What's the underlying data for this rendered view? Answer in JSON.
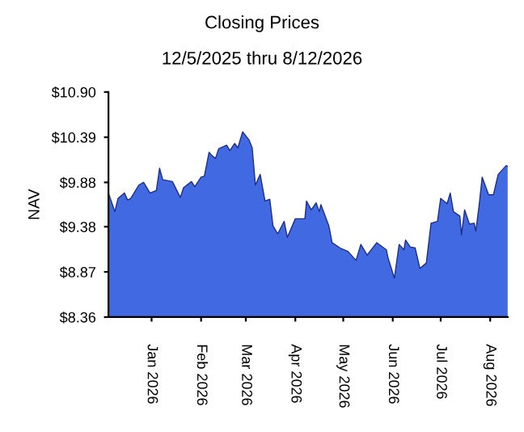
{
  "chart_data": {
    "type": "area",
    "title": "Closing Prices",
    "subtitle": "12/5/2025 thru 8/12/2026",
    "ylabel": "NAV",
    "x": [
      "2025-12-05",
      "2025-12-09",
      "2025-12-11",
      "2025-12-15",
      "2025-12-17",
      "2025-12-19",
      "2025-12-24",
      "2025-12-27",
      "2025-12-31",
      "2026-01-04",
      "2026-01-06",
      "2026-01-08",
      "2026-01-14",
      "2026-01-19",
      "2026-01-21",
      "2026-01-26",
      "2026-01-28",
      "2026-02-01",
      "2026-02-03",
      "2026-02-06",
      "2026-02-08",
      "2026-02-10",
      "2026-02-12",
      "2026-02-17",
      "2026-02-19",
      "2026-02-22",
      "2026-02-24",
      "2026-02-27",
      "2026-03-03",
      "2026-03-05",
      "2026-03-07",
      "2026-03-10",
      "2026-03-13",
      "2026-03-16",
      "2026-03-18",
      "2026-03-21",
      "2026-03-25",
      "2026-03-27",
      "2026-04-01",
      "2026-04-07",
      "2026-04-08",
      "2026-04-11",
      "2026-04-14",
      "2026-04-16",
      "2026-04-17",
      "2026-04-22",
      "2026-04-24",
      "2026-04-29",
      "2026-05-04",
      "2026-05-09",
      "2026-05-12",
      "2026-05-16",
      "2026-05-22",
      "2026-05-28",
      "2026-05-29",
      "2026-06-02",
      "2026-06-05",
      "2026-06-08",
      "2026-06-09",
      "2026-06-12",
      "2026-06-15",
      "2026-06-18",
      "2026-06-22",
      "2026-06-25",
      "2026-06-29",
      "2026-07-01",
      "2026-07-05",
      "2026-07-07",
      "2026-07-09",
      "2026-07-13",
      "2026-07-14",
      "2026-07-16",
      "2026-07-19",
      "2026-07-22",
      "2026-07-23",
      "2026-07-25",
      "2026-07-27",
      "2026-07-31",
      "2026-08-03",
      "2026-08-06",
      "2026-08-11",
      "2026-08-12"
    ],
    "series": [
      {
        "color": "#4169e1",
        "values": [
          9.76,
          9.55,
          9.7,
          9.76,
          9.68,
          9.7,
          9.85,
          9.88,
          9.76,
          9.79,
          10.04,
          9.91,
          9.89,
          9.71,
          9.82,
          9.89,
          9.83,
          9.94,
          9.95,
          10.22,
          10.18,
          10.15,
          10.26,
          10.3,
          10.24,
          10.32,
          10.27,
          10.45,
          10.36,
          10.27,
          9.85,
          9.97,
          9.67,
          9.69,
          9.39,
          9.3,
          9.44,
          9.26,
          9.47,
          9.47,
          9.67,
          9.57,
          9.65,
          9.55,
          9.63,
          9.39,
          9.2,
          9.14,
          9.1,
          9.0,
          9.18,
          9.06,
          9.2,
          9.12,
          9.03,
          8.8,
          9.18,
          9.12,
          9.23,
          9.15,
          9.14,
          8.91,
          8.97,
          9.42,
          9.44,
          9.7,
          9.64,
          9.76,
          9.55,
          9.5,
          9.29,
          9.57,
          9.41,
          9.42,
          9.33,
          9.61,
          9.94,
          9.74,
          9.74,
          9.97,
          10.07,
          10.06
        ]
      }
    ],
    "xlim": [
      "2025-12-05",
      "2026-08-12"
    ],
    "xticks": [
      {
        "value": "2026-01-01",
        "label": "Jan 2026"
      },
      {
        "value": "2026-02-01",
        "label": "Feb 2026"
      },
      {
        "value": "2026-03-01",
        "label": "Mar 2026"
      },
      {
        "value": "2026-04-01",
        "label": "Apr 2026"
      },
      {
        "value": "2026-05-01",
        "label": "May 2026"
      },
      {
        "value": "2026-06-01",
        "label": "Jun 2026"
      },
      {
        "value": "2026-07-01",
        "label": "Jul 2026"
      },
      {
        "value": "2026-08-01",
        "label": "Aug 2026"
      }
    ],
    "ylim": [
      8.36,
      10.9
    ],
    "yticks": [
      {
        "value": 8.36,
        "label": "$8.36"
      },
      {
        "value": 8.87,
        "label": "$8.87"
      },
      {
        "value": 9.38,
        "label": "$9.38"
      },
      {
        "value": 9.88,
        "label": "$9.88"
      },
      {
        "value": 10.39,
        "label": "$10.39"
      },
      {
        "value": 10.9,
        "label": "$10.90"
      }
    ],
    "grid": false
  }
}
